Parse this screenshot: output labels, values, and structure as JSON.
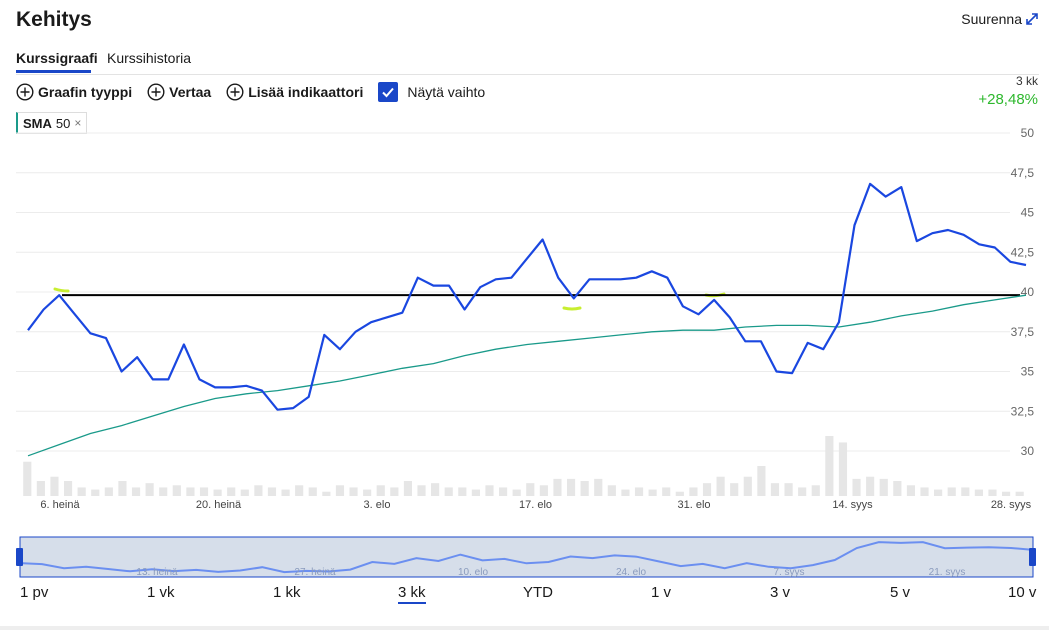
{
  "header": {
    "title": "Kehitys",
    "expand_label": "Suurenna",
    "expand_icon": "expand-diagonal-icon"
  },
  "tabs": [
    {
      "label": "Kurssigraafi",
      "active": true
    },
    {
      "label": "Kurssihistoria",
      "active": false
    }
  ],
  "toolbar": {
    "chart_type_label": "Graafin tyyppi",
    "compare_label": "Vertaa",
    "add_indicator_label": "Lisää indikaattori",
    "show_volume_label": "Näytä vaihto",
    "show_volume_checked": true,
    "plus_icon": "plus-circle-icon"
  },
  "summary": {
    "period": "3 kk",
    "change": "+28,48%",
    "change_color": "#2eb82e"
  },
  "indicator_chip": {
    "name": "SMA",
    "value": "50",
    "close": "×",
    "color": "#1a9a8a"
  },
  "colors": {
    "price_line": "#1a47e0",
    "sma_line": "#1a9a8a",
    "reference_line": "#000000",
    "volume_bar": "#e6e6e6",
    "navigator_fill": "#d6deea",
    "navigator_border": "#1a47c8",
    "annotation": "#c8ee30"
  },
  "chart_data": {
    "type": "line",
    "ylim": [
      29,
      51
    ],
    "yticks": [
      "50",
      "47,5",
      "45",
      "42,5",
      "40",
      "37,5",
      "35",
      "32,5",
      "30"
    ],
    "xticks": [
      "6. heinä",
      "20. heinä",
      "3. elo",
      "17. elo",
      "31. elo",
      "14. syys",
      "28. syys"
    ],
    "reference_value": 39.8,
    "series": [
      {
        "values": [
          37.6,
          38.9,
          39.8,
          38.6,
          37.4,
          37.1,
          35.0,
          35.9,
          34.5,
          34.5,
          36.7,
          34.5,
          34.0,
          34.0,
          34.1,
          33.8,
          32.6,
          32.7,
          33.4,
          37.3,
          36.4,
          37.5,
          38.1,
          38.4,
          38.7,
          40.9,
          40.4,
          40.4,
          38.9,
          40.3,
          40.8,
          40.9,
          42.1,
          43.3,
          40.9,
          39.6,
          40.8,
          40.8,
          40.8,
          40.9,
          41.3,
          40.9,
          39.1,
          38.6,
          39.5,
          38.4,
          36.9,
          36.9,
          35.0,
          34.9,
          36.8,
          36.4,
          38.1,
          44.2,
          46.8,
          46.0,
          46.6,
          43.2,
          43.7,
          43.9,
          43.6,
          43.0,
          42.8,
          41.9,
          41.7
        ]
      },
      {
        "values": [
          29.7,
          30.4,
          31.1,
          31.6,
          32.2,
          32.8,
          33.3,
          33.6,
          33.8,
          34.1,
          34.4,
          34.8,
          35.2,
          35.5,
          36.0,
          36.4,
          36.7,
          36.9,
          37.1,
          37.3,
          37.5,
          37.6,
          37.6,
          37.8,
          37.9,
          37.9,
          37.8,
          38.1,
          38.5,
          38.8,
          39.2,
          39.5,
          39.8
        ]
      }
    ],
    "volume": [
      16,
      7,
      9,
      7,
      4,
      3,
      4,
      7,
      4,
      6,
      4,
      5,
      4,
      4,
      3,
      4,
      3,
      5,
      4,
      3,
      5,
      4,
      2,
      5,
      4,
      3,
      5,
      4,
      7,
      5,
      6,
      4,
      4,
      3,
      5,
      4,
      3,
      6,
      5,
      8,
      8,
      7,
      8,
      5,
      3,
      4,
      3,
      4,
      2,
      4,
      6,
      9,
      6,
      9,
      14,
      6,
      6,
      4,
      5,
      28,
      25,
      8,
      9,
      8,
      7,
      5,
      4,
      3,
      4,
      4,
      3,
      3,
      2,
      2
    ]
  },
  "navigator": {
    "ticks": [
      "13. heinä",
      "27. heinä",
      "10. elo",
      "24. elo",
      "7. syys",
      "21. syys"
    ],
    "values": [
      36.8,
      36.3,
      34.3,
      35.0,
      33.9,
      32.8,
      33.8,
      32.9,
      33.5,
      32.5,
      33.2,
      34.8,
      32.4,
      33.0,
      32.7,
      33.6,
      37.3,
      36.4,
      39.2,
      37.8,
      40.9,
      38.1,
      38.8,
      36.7,
      37.3,
      40.0,
      39.2,
      40.5,
      39.9,
      37.6,
      35.3,
      36.4,
      34.3,
      36.8,
      35.0,
      34.3,
      35.8,
      38.3,
      44.1,
      47.0,
      46.6,
      47.0,
      44.0,
      44.3,
      44.5,
      44.1,
      43.2
    ]
  },
  "ranges": [
    {
      "label": "1 pv",
      "active": false
    },
    {
      "label": "1 vk",
      "active": false
    },
    {
      "label": "1 kk",
      "active": false
    },
    {
      "label": "3 kk",
      "active": true
    },
    {
      "label": "YTD",
      "active": false
    },
    {
      "label": "1 v",
      "active": false
    },
    {
      "label": "3 v",
      "active": false
    },
    {
      "label": "5 v",
      "active": false
    },
    {
      "label": "10 v",
      "active": false
    }
  ]
}
